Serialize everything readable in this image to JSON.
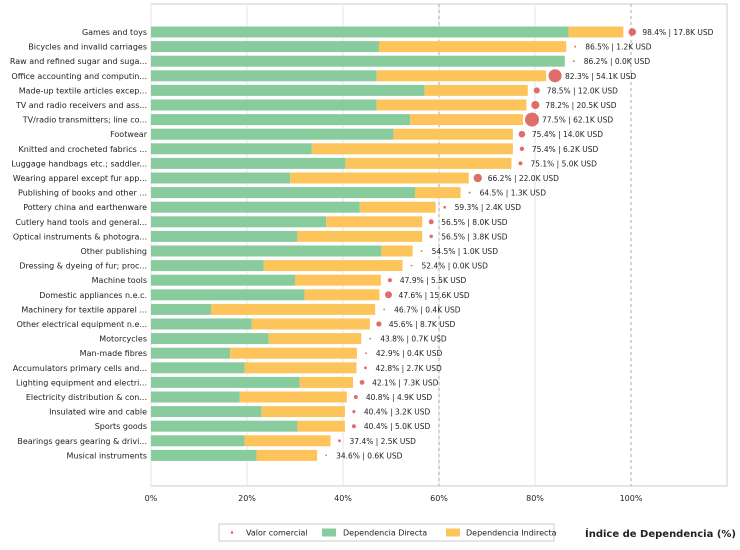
{
  "chart_data": {
    "type": "bar",
    "orientation": "horizontal",
    "stacked": true,
    "xlabel": "Índice de Dependencia (%)",
    "xlim": [
      0,
      120
    ],
    "xticks": [
      0,
      20,
      40,
      60,
      80,
      100
    ],
    "xtick_labels": [
      "0%",
      "20%",
      "40%",
      "60%",
      "80%",
      "100%"
    ],
    "grid": true,
    "legend": [
      "Valor comercial",
      "Dependencia Directa",
      "Dependencia Indirecta"
    ],
    "legend_position": "bottom",
    "colors": {
      "direct": "#88cc9e",
      "indirect": "#fec45c",
      "bubble": "#d9534f",
      "ref_line": "#aaaaaa"
    },
    "categories": [
      "Games and toys",
      "Bicycles and invalid carriages",
      "Raw and refined sugar and suga...",
      "Office accounting and computin...",
      "Made-up textile articles excep...",
      "TV and radio receivers and ass...",
      "TV/radio transmitters; line co...",
      "Footwear",
      "Knitted and crocheted fabrics ...",
      "Luggage handbags etc.; saddler...",
      "Wearing apparel except fur app...",
      "Publishing of books and other ...",
      "Pottery china and earthenware",
      "Cutlery hand tools and general...",
      "Optical instruments & photogra...",
      "Other publishing",
      "Dressing & dyeing of fur; proc...",
      "Machine tools",
      "Domestic appliances n.e.c.",
      "Machinery for textile apparel ...",
      "Other electrical equipment n.e...",
      "Motorcycles",
      "Man-made fibres",
      "Accumulators primary cells and...",
      "Lighting equipment and electri...",
      "Electricity distribution & con...",
      "Insulated wire and cable",
      "Sports goods",
      "Bearings gears gearing & drivi...",
      "Musical instruments"
    ],
    "series": [
      {
        "name": "Dependencia Directa",
        "values": [
          87,
          47.5,
          86.2,
          47,
          57,
          47,
          54,
          50.5,
          33.5,
          40.5,
          29,
          55,
          43.5,
          36.5,
          30.5,
          48,
          23.5,
          30,
          32,
          12.5,
          21,
          24.5,
          16.5,
          19.5,
          31,
          18.5,
          23,
          30.5,
          19.5,
          22
        ]
      },
      {
        "name": "Dependencia Indirecta",
        "values": [
          11.4,
          39,
          0,
          35.3,
          21.5,
          31.2,
          23.5,
          24.9,
          41.9,
          34.6,
          37.2,
          9.5,
          15.8,
          20,
          26,
          6.5,
          28.9,
          17.9,
          15.6,
          34.2,
          24.6,
          19.3,
          26.4,
          23.3,
          11.1,
          22.3,
          17.4,
          9.9,
          17.9,
          12.6
        ]
      }
    ],
    "totals": [
      98.4,
      86.5,
      86.2,
      82.3,
      78.5,
      78.2,
      77.5,
      75.4,
      75.4,
      75.1,
      66.2,
      64.5,
      59.3,
      56.5,
      56.5,
      54.5,
      52.4,
      47.9,
      47.6,
      46.7,
      45.6,
      43.8,
      42.9,
      42.8,
      42.1,
      40.8,
      40.4,
      40.4,
      37.4,
      34.6
    ],
    "trade_value_kusd": [
      17.8,
      1.2,
      0.0,
      54.1,
      12.0,
      20.5,
      62.1,
      14.0,
      6.2,
      5.0,
      22.0,
      1.3,
      2.4,
      8.0,
      3.8,
      1.0,
      0.0,
      5.5,
      15.6,
      0.4,
      8.7,
      0.7,
      0.4,
      2.7,
      7.3,
      4.9,
      3.2,
      5.0,
      2.5,
      0.6
    ],
    "data_labels": [
      "98.4% | 17.8K USD",
      "86.5% | 1.2K USD",
      "86.2% | 0.0K USD",
      "82.3% | 54.1K USD",
      "78.5% | 12.0K USD",
      "78.2% | 20.5K USD",
      "77.5% | 62.1K USD",
      "75.4% | 14.0K USD",
      "75.4% | 6.2K USD",
      "75.1% | 5.0K USD",
      "66.2% | 22.0K USD",
      "64.5% | 1.3K USD",
      "59.3% | 2.4K USD",
      "56.5% | 8.0K USD",
      "56.5% | 3.8K USD",
      "54.5% | 1.0K USD",
      "52.4% | 0.0K USD",
      "47.9% | 5.5K USD",
      "47.6% | 15.6K USD",
      "46.7% | 0.4K USD",
      "45.6% | 8.7K USD",
      "43.8% | 0.7K USD",
      "42.9% | 0.4K USD",
      "42.8% | 2.7K USD",
      "42.1% | 7.3K USD",
      "40.8% | 4.9K USD",
      "40.4% | 3.2K USD",
      "40.4% | 5.0K USD",
      "37.4% | 2.5K USD",
      "34.6% | 0.6K USD"
    ]
  }
}
